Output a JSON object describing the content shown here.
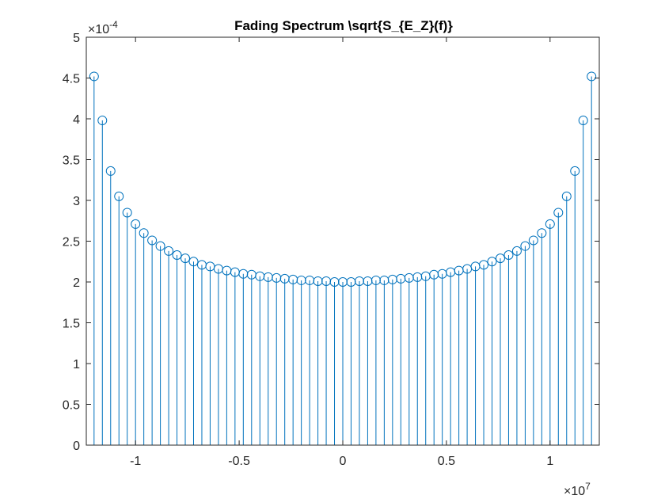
{
  "chart_data": {
    "type": "stem",
    "title": "Fading Spectrum \\sqrt{S_{E_Z}(f)}",
    "xlabel": "",
    "ylabel": "",
    "x_exponent": {
      "base": "10",
      "power": "7"
    },
    "y_exponent": {
      "base": "10",
      "power": "-4"
    },
    "xlim": [
      -1.2375,
      1.2375
    ],
    "ylim": [
      0,
      5
    ],
    "xticks": [
      -1,
      -0.5,
      0,
      0.5,
      1
    ],
    "xtick_labels": [
      "-1",
      "-0.5",
      "0",
      "0.5",
      "1"
    ],
    "yticks": [
      0,
      0.5,
      1,
      1.5,
      2,
      2.5,
      3,
      3.5,
      4,
      4.5,
      5
    ],
    "ytick_labels": [
      "0",
      "0.5",
      "1",
      "1.5",
      "2",
      "2.5",
      "3",
      "3.5",
      "4",
      "4.5",
      "5"
    ],
    "grid": false,
    "series": [
      {
        "color": "#0072BD",
        "x": [
          -1.2,
          -1.16,
          -1.12,
          -1.08,
          -1.04,
          -1.0,
          -0.96,
          -0.92,
          -0.88,
          -0.84,
          -0.8,
          -0.76,
          -0.72,
          -0.68,
          -0.64,
          -0.6,
          -0.56,
          -0.52,
          -0.48,
          -0.44,
          -0.4,
          -0.36,
          -0.32,
          -0.28,
          -0.24,
          -0.2,
          -0.16,
          -0.12,
          -0.08,
          -0.04,
          0.0,
          0.04,
          0.08,
          0.12,
          0.16,
          0.2,
          0.24,
          0.28,
          0.32,
          0.36,
          0.4,
          0.44,
          0.48,
          0.52,
          0.56,
          0.6,
          0.64,
          0.68,
          0.72,
          0.76,
          0.8,
          0.84,
          0.88,
          0.92,
          0.96,
          1.0,
          1.04,
          1.08,
          1.12,
          1.16,
          1.2
        ],
        "y": [
          4.52,
          3.98,
          3.36,
          3.05,
          2.85,
          2.71,
          2.6,
          2.51,
          2.44,
          2.38,
          2.33,
          2.29,
          2.25,
          2.21,
          2.19,
          2.16,
          2.14,
          2.12,
          2.1,
          2.09,
          2.07,
          2.06,
          2.05,
          2.04,
          2.03,
          2.02,
          2.02,
          2.01,
          2.01,
          2.0,
          2.0,
          2.0,
          2.01,
          2.01,
          2.02,
          2.02,
          2.03,
          2.04,
          2.05,
          2.06,
          2.07,
          2.09,
          2.1,
          2.12,
          2.14,
          2.16,
          2.19,
          2.21,
          2.25,
          2.29,
          2.33,
          2.38,
          2.44,
          2.51,
          2.6,
          2.71,
          2.85,
          3.05,
          3.36,
          3.98,
          4.52
        ]
      }
    ]
  }
}
